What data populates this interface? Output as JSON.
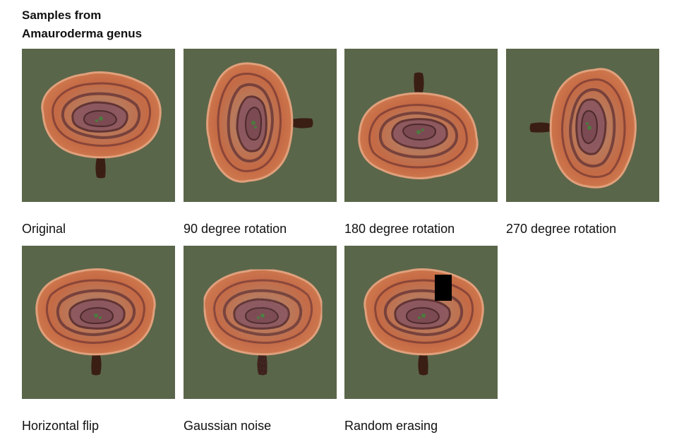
{
  "title_line1": "Samples from",
  "title_line2": "Amauroderma genus",
  "samples": [
    {
      "caption": "Original",
      "transform": "original"
    },
    {
      "caption": "90 degree rotation",
      "transform": "rotate-90"
    },
    {
      "caption": "180 degree rotation",
      "transform": "rotate-180"
    },
    {
      "caption": "270 degree rotation",
      "transform": "rotate-270"
    },
    {
      "caption": "Horizontal flip",
      "transform": "horizontal-flip"
    },
    {
      "caption": "Gaussian noise",
      "transform": "gaussian-noise"
    },
    {
      "caption": "Random erasing",
      "transform": "random-erasing"
    }
  ],
  "colors": {
    "background": "#5a6649",
    "cap_outer": "#c4603a",
    "cap_mid": "#b56a48",
    "cap_ring": "#6b3a38",
    "cap_center": "#7c4a52",
    "stem": "#3a1e14",
    "erase_block": "#000000"
  }
}
